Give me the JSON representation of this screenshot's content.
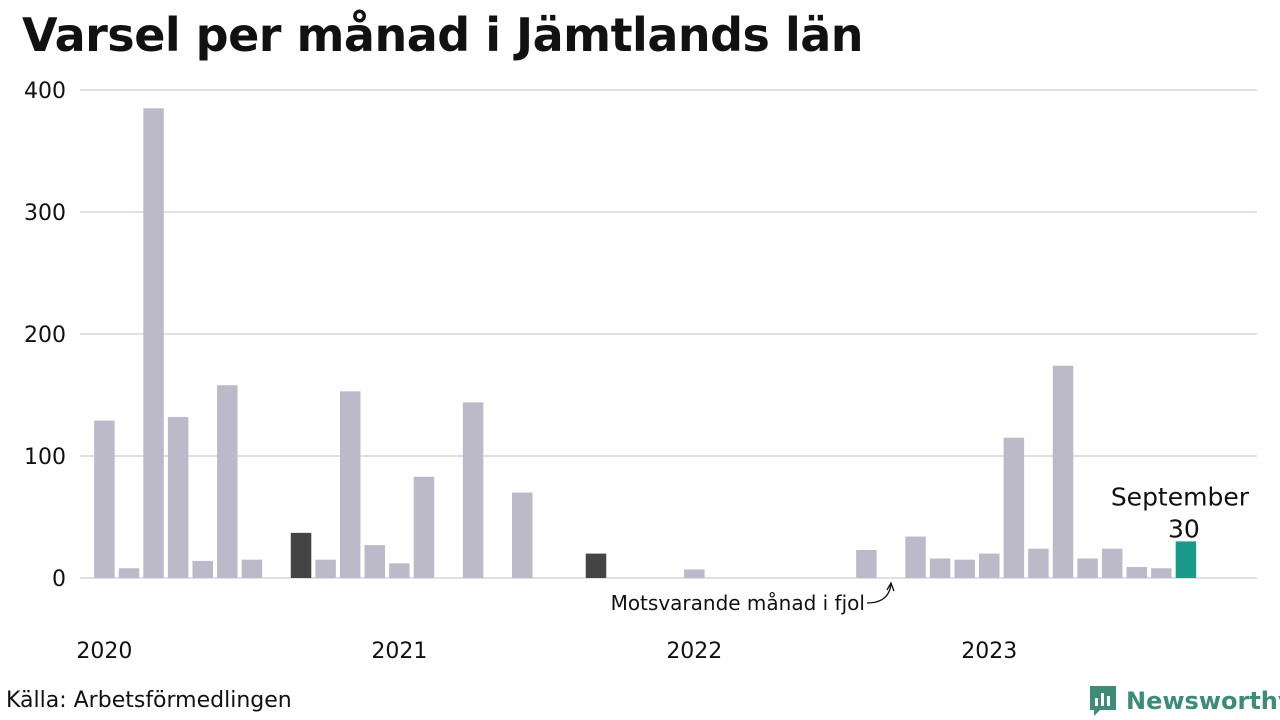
{
  "title": "Varsel per månad i Jämtlands län",
  "source": "Källa: Arbetsförmedlingen",
  "brand": {
    "name": "Newsworthy",
    "icon": "newsworthy-logo-icon",
    "color": "#3d8c78"
  },
  "colors": {
    "default": "#bcbac8",
    "same_month_previous_years": "#444444",
    "highlight": "#1a9a8a",
    "grid": "#e0e0e6"
  },
  "chart_data": {
    "type": "bar",
    "title": "Varsel per månad i Jämtlands län",
    "xlabel": "",
    "ylabel": "",
    "ylim": [
      0,
      400
    ],
    "yticks": [
      "0",
      "100",
      "200",
      "300",
      "400"
    ],
    "year_labels": [
      "2020",
      "2021",
      "2022",
      "2023"
    ],
    "grid": true,
    "categories": [
      "2020-01",
      "2020-02",
      "2020-03",
      "2020-04",
      "2020-05",
      "2020-06",
      "2020-07",
      "2020-08",
      "2020-09",
      "2020-10",
      "2020-11",
      "2020-12",
      "2021-01",
      "2021-02",
      "2021-03",
      "2021-04",
      "2021-05",
      "2021-06",
      "2021-07",
      "2021-08",
      "2021-09",
      "2021-10",
      "2021-11",
      "2021-12",
      "2022-01",
      "2022-02",
      "2022-03",
      "2022-04",
      "2022-05",
      "2022-06",
      "2022-07",
      "2022-08",
      "2022-09",
      "2022-10",
      "2022-11",
      "2022-12",
      "2023-01",
      "2023-02",
      "2023-03",
      "2023-04",
      "2023-05",
      "2023-06",
      "2023-07",
      "2023-08",
      "2023-09"
    ],
    "values": [
      129,
      8,
      385,
      132,
      14,
      158,
      15,
      0,
      37,
      15,
      153,
      27,
      12,
      83,
      0,
      144,
      0,
      70,
      0,
      0,
      20,
      0,
      0,
      0,
      7,
      0,
      0,
      0,
      0,
      0,
      0,
      23,
      0,
      34,
      16,
      15,
      20,
      115,
      24,
      174,
      16,
      24,
      9,
      8,
      30
    ],
    "highlight": {
      "month": "2023-09",
      "label": "September",
      "value_label": "30"
    },
    "same_month_previous_years": [
      "2020-09",
      "2021-09"
    ],
    "annotation": "Motsvarande månad i fjol"
  }
}
